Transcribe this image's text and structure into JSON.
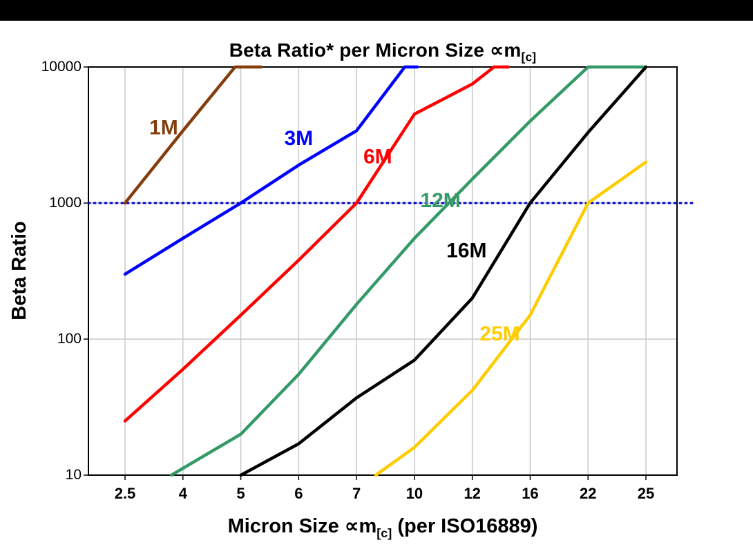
{
  "page": {
    "background": "#ffffff",
    "top_bar_color": "#000000"
  },
  "chart_data": {
    "type": "line",
    "title": "Beta Ratio* per Micron Size ∝m[c]",
    "title_parts": {
      "prefix": "Beta Ratio* per Micron Size ",
      "symbol": "∝m",
      "subscript": "[c]"
    },
    "xlabel": "Micron Size ∝m[c] (per ISO16889)",
    "xlabel_parts": {
      "prefix": "Micron Size ",
      "symbol": "∝m",
      "subscript": "[c]",
      "suffix": " (per ISO16889)"
    },
    "ylabel": "Beta Ratio",
    "x_axis": {
      "scale": "categorical-equal-spacing",
      "categories": [
        2.5,
        4,
        5,
        6,
        7,
        10,
        12,
        16,
        22,
        25
      ],
      "tick_labels": [
        "2.5",
        "4",
        "5",
        "6",
        "7",
        "10",
        "12",
        "16",
        "22",
        "25"
      ]
    },
    "y_axis": {
      "scale": "log",
      "min": 10,
      "max": 10000,
      "ticks": [
        10000,
        1000,
        100,
        10
      ],
      "tick_labels": [
        "10000",
        "1000",
        "100",
        "10"
      ]
    },
    "grid": {
      "color": "#c9c9c9",
      "vertical": true,
      "horizontal": true
    },
    "reference_line": {
      "value": 1000,
      "color": "#0000cc",
      "style": "dotted"
    },
    "series": [
      {
        "name": "1M",
        "color": "#843c0c",
        "points": [
          [
            2.5,
            1000
          ],
          [
            4,
            3400
          ],
          [
            4.9,
            10000
          ],
          [
            5.35,
            10000
          ]
        ]
      },
      {
        "name": "3M",
        "color": "#0000ff",
        "points": [
          [
            2.5,
            300
          ],
          [
            4,
            550
          ],
          [
            5,
            1000
          ],
          [
            6,
            1900
          ],
          [
            7,
            3400
          ],
          [
            9.5,
            10000
          ],
          [
            10.1,
            10000
          ]
        ]
      },
      {
        "name": "6M",
        "color": "#ff0000",
        "points": [
          [
            2.5,
            25
          ],
          [
            4,
            60
          ],
          [
            5,
            150
          ],
          [
            6,
            380
          ],
          [
            7,
            1000
          ],
          [
            10,
            4500
          ],
          [
            12,
            7500
          ],
          [
            13.5,
            10000
          ],
          [
            14.5,
            10000
          ]
        ]
      },
      {
        "name": "12M",
        "color": "#339966",
        "points": [
          [
            3.7,
            10
          ],
          [
            5,
            20
          ],
          [
            6,
            55
          ],
          [
            7,
            180
          ],
          [
            10,
            550
          ],
          [
            12,
            1500
          ],
          [
            16,
            4000
          ],
          [
            22,
            10000
          ],
          [
            25,
            10000
          ]
        ]
      },
      {
        "name": "16M",
        "color": "#000000",
        "points": [
          [
            5,
            10
          ],
          [
            6,
            17
          ],
          [
            7,
            37
          ],
          [
            10,
            70
          ],
          [
            12,
            200
          ],
          [
            16,
            1000
          ],
          [
            22,
            3300
          ],
          [
            25,
            10000
          ]
        ]
      },
      {
        "name": "25M",
        "color": "#ffcc00",
        "points": [
          [
            8,
            10
          ],
          [
            10,
            16
          ],
          [
            12,
            42
          ],
          [
            16,
            150
          ],
          [
            22,
            1000
          ],
          [
            25,
            2000
          ]
        ]
      }
    ],
    "series_labels": [
      {
        "text": "1M",
        "color": "#843c0c",
        "x": 3.5,
        "y": 3600
      },
      {
        "text": "3M",
        "color": "#0000ff",
        "x": 6.0,
        "y": 3000
      },
      {
        "text": "6M",
        "color": "#ff0000",
        "x": 8.1,
        "y": 2200
      },
      {
        "text": "12M",
        "color": "#339966",
        "x": 10.9,
        "y": 1050
      },
      {
        "text": "16M",
        "color": "#000000",
        "x": 11.8,
        "y": 450
      },
      {
        "text": "25M",
        "color": "#ffcc00",
        "x": 13.9,
        "y": 110
      }
    ]
  }
}
